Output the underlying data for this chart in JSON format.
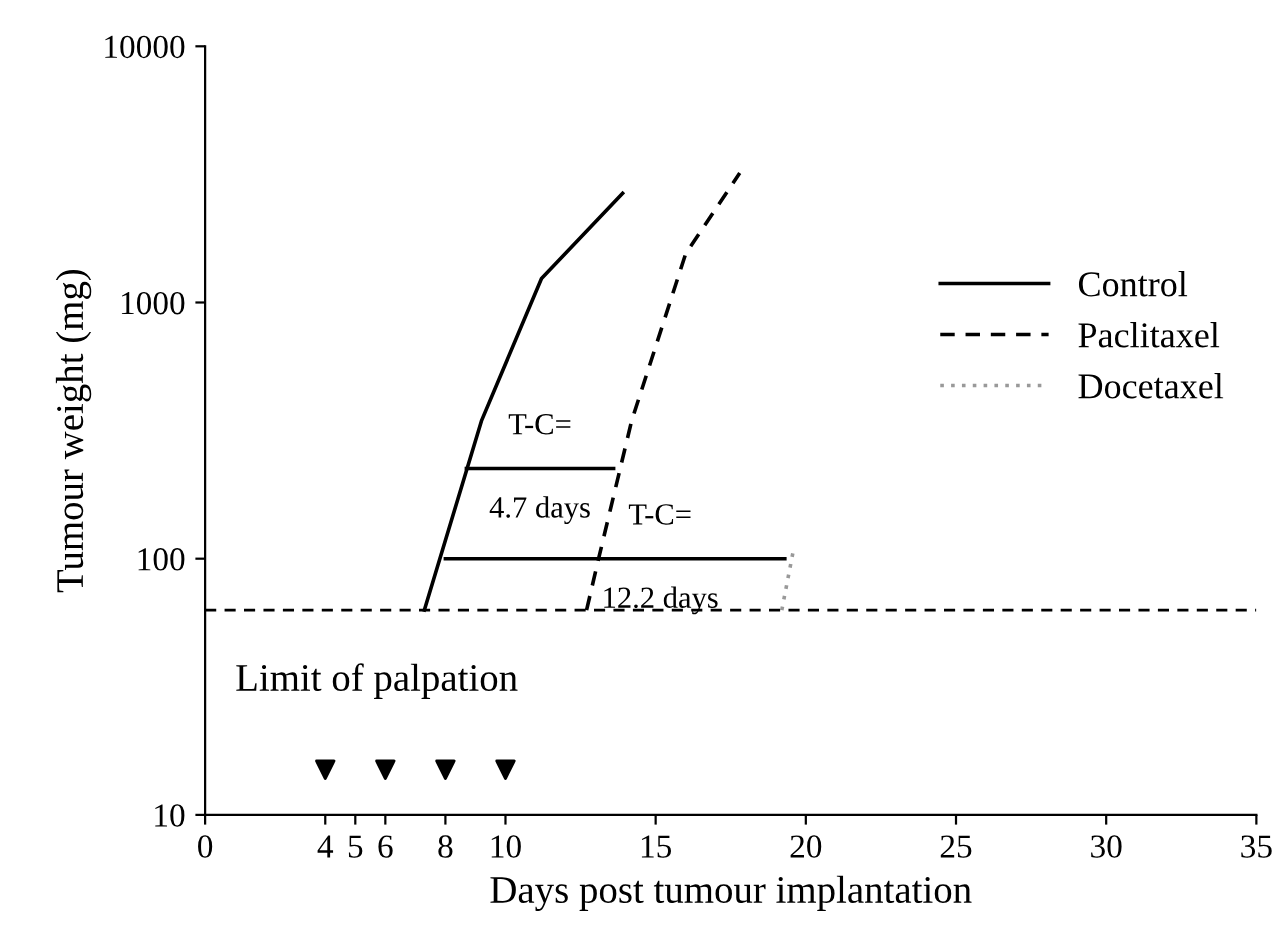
{
  "chart_data": {
    "type": "line",
    "xlabel": "Days post tumour implantation",
    "ylabel": "Tumour weight (mg)",
    "log": "y",
    "xlim": [
      0,
      35
    ],
    "ylim": [
      10,
      10000
    ],
    "xticks": [
      0,
      4,
      5,
      6,
      8,
      10,
      15,
      20,
      25,
      30,
      35
    ],
    "yticks": [
      10,
      100,
      1000,
      10000
    ],
    "legend": "right",
    "grid": false,
    "series": [
      {
        "name": "Control",
        "color": "#000000",
        "line_style": "solid",
        "x": [
          7.3,
          9.2,
          11.2,
          13.9
        ],
        "values": [
          63,
          345,
          1240,
          2670
        ]
      },
      {
        "name": "Paclitaxel",
        "color": "#000000",
        "line_style": "dashed",
        "x": [
          12.7,
          13.1,
          14.2,
          16.0,
          17.8
        ],
        "values": [
          63,
          100,
          345,
          1550,
          3200
        ]
      },
      {
        "name": "Docetaxel",
        "color": "#999999",
        "line_style": "dotted",
        "x": [
          19.2,
          19.6
        ],
        "values": [
          63,
          110
        ]
      },
      {
        "type": "line",
        "color": "#000000",
        "line_style": "solid",
        "x": [
          8.7,
          13.6
        ],
        "values": [
          225,
          225
        ]
      },
      {
        "type": "line",
        "color": "#000000",
        "line_style": "solid",
        "x": [
          8.0,
          19.3
        ],
        "values": [
          100,
          100
        ]
      },
      {
        "type": "scatter",
        "color": "#000000",
        "marker": "triangle",
        "x": [
          4,
          6,
          8,
          10
        ],
        "values": [
          15,
          15,
          15,
          15
        ]
      }
    ],
    "ref_lines": [
      {
        "axis": "y",
        "value": 63,
        "label": "Limit of palpation",
        "color": "#000000",
        "line_style": "dashed"
      }
    ],
    "annotations": [
      "T-C=",
      "4.7 days",
      "T-C=",
      "12.2 days"
    ]
  }
}
